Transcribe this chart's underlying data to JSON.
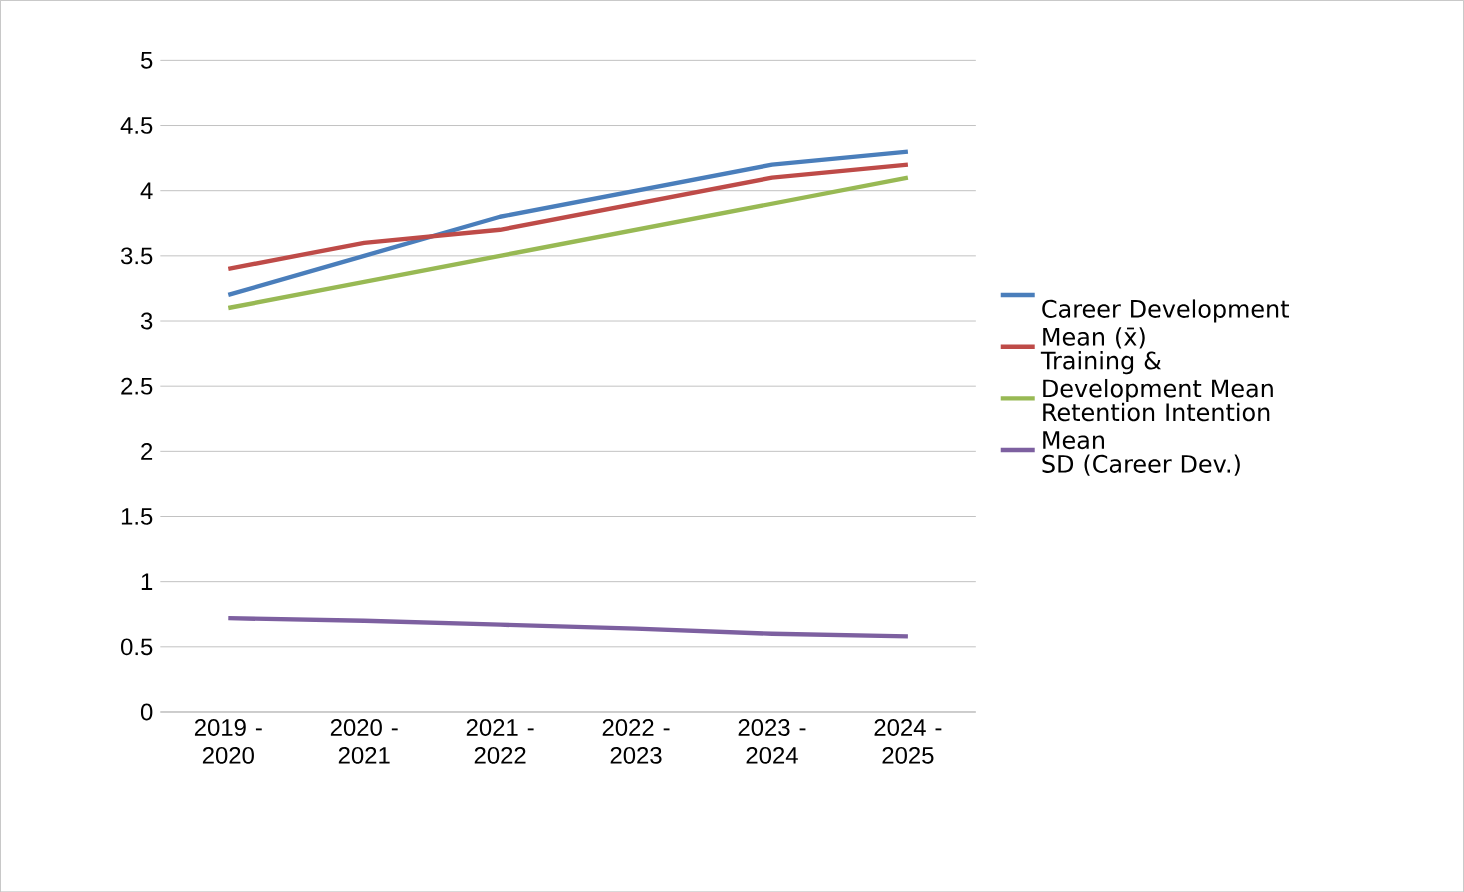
{
  "chart_data": {
    "type": "line",
    "categories": [
      "2019 - 2020",
      "2020 - 2021",
      "2021 - 2022",
      "2022 - 2023",
      "2023 - 2024",
      "2024 - 2025"
    ],
    "series": [
      {
        "name": "Career Development Mean (x̄)",
        "color": "#4a7ebb",
        "values": [
          3.2,
          3.5,
          3.8,
          4.0,
          4.2,
          4.3
        ]
      },
      {
        "name": "Training & Development Mean",
        "color": "#be4b48",
        "values": [
          3.4,
          3.6,
          3.7,
          3.9,
          4.1,
          4.2
        ]
      },
      {
        "name": "Retention Intention Mean",
        "color": "#98b954",
        "values": [
          3.1,
          3.3,
          3.5,
          3.7,
          3.9,
          4.1
        ]
      },
      {
        "name": "SD (Career Dev.)",
        "color": "#7d60a0",
        "values": [
          0.72,
          0.7,
          0.67,
          0.64,
          0.6,
          0.58
        ]
      }
    ],
    "ylim": [
      0,
      5
    ],
    "yticks": [
      0,
      0.5,
      1,
      1.5,
      2,
      2.5,
      3,
      3.5,
      4,
      4.5,
      5
    ],
    "grid": "y",
    "legend": "right",
    "marker": "none",
    "line_style": "solid"
  }
}
